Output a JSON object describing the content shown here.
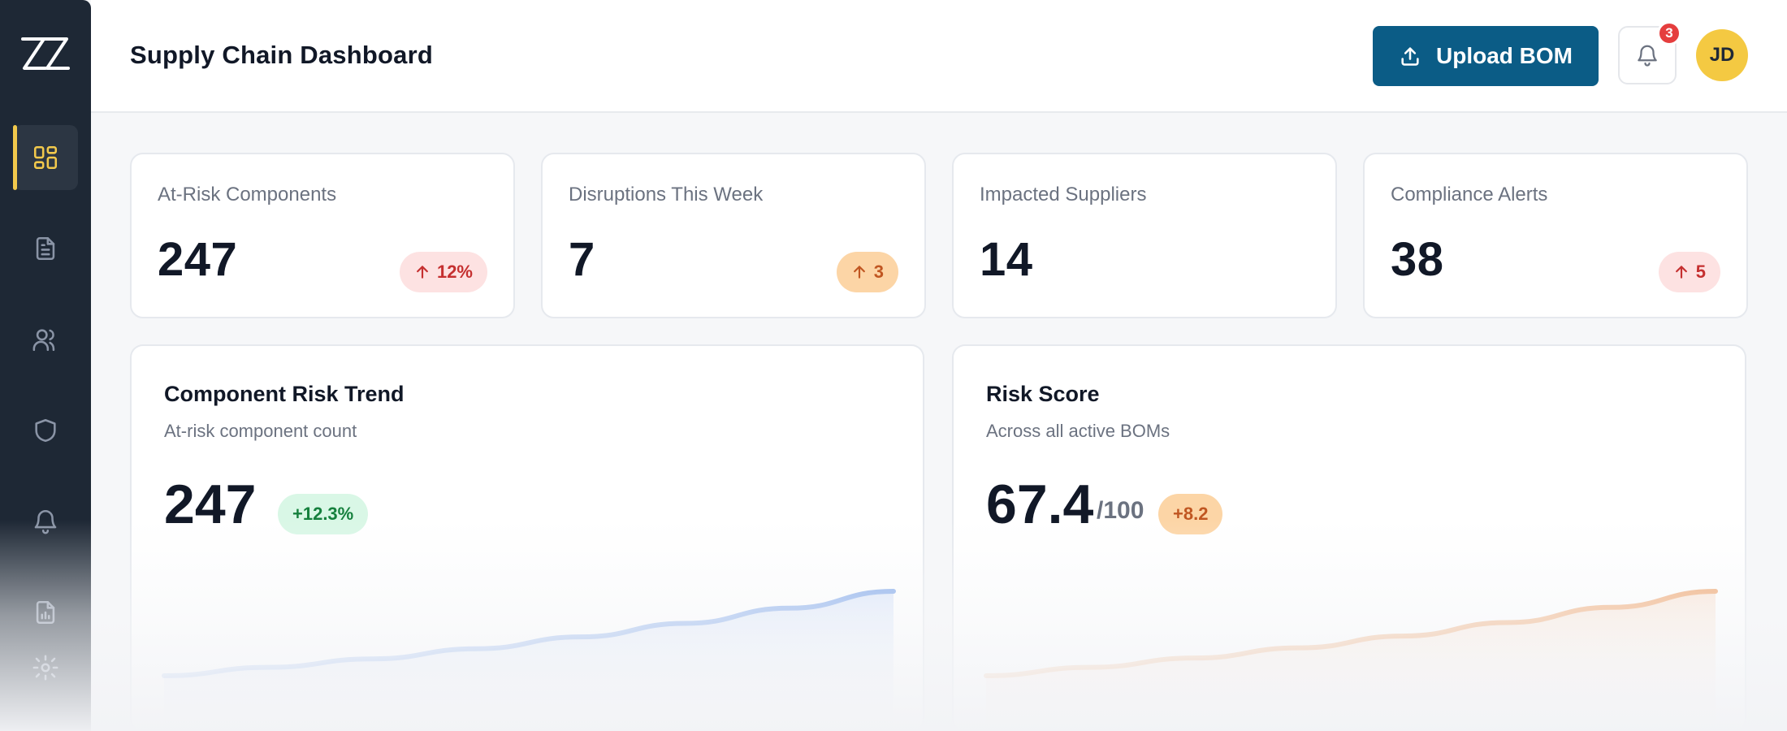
{
  "app": {
    "logo_text": "ZZ",
    "title": "Supply Chain Dashboard"
  },
  "sidebar": {
    "items": [
      {
        "name": "dashboard",
        "icon": "dashboard-grid-icon",
        "active": true
      },
      {
        "name": "documents",
        "icon": "document-icon",
        "active": false
      },
      {
        "name": "suppliers",
        "icon": "users-icon",
        "active": false
      },
      {
        "name": "compliance",
        "icon": "shield-icon",
        "active": false
      },
      {
        "name": "alerts",
        "icon": "bell-icon",
        "active": false
      },
      {
        "name": "reports",
        "icon": "report-chart-icon",
        "active": false
      },
      {
        "name": "settings",
        "icon": "gear-icon",
        "active": false
      }
    ],
    "accent": "#f2c94c"
  },
  "header": {
    "upload_label": "Upload BOM",
    "notification_count": "3",
    "avatar_initials": "JD"
  },
  "kpis": [
    {
      "label": "At-Risk Components",
      "value": "247",
      "delta": "12%",
      "tone": "red"
    },
    {
      "label": "Disruptions This Week",
      "value": "7",
      "delta": "3",
      "tone": "orange"
    },
    {
      "label": "Impacted Suppliers",
      "value": "14"
    },
    {
      "label": "Compliance Alerts",
      "value": "38",
      "delta": "5",
      "tone": "red"
    }
  ],
  "charts": [
    {
      "title": "Component Risk Trend",
      "subtitle": "At-risk component count",
      "value": "247",
      "suffix": "",
      "change": "+12.3%",
      "tone": "green",
      "color": "#7ea6ea"
    },
    {
      "title": "Risk Score",
      "subtitle": "Across all active BOMs",
      "value": "67.4",
      "suffix": "/100",
      "change": "+8.2",
      "tone": "orange",
      "color": "#f0a46b"
    }
  ],
  "chart_data": [
    {
      "type": "area",
      "title": "Component Risk Trend",
      "series": [
        {
          "values": [
            0.0,
            0.1,
            0.2,
            0.32,
            0.46,
            0.62,
            0.8,
            1.0
          ]
        }
      ]
    },
    {
      "type": "area",
      "title": "Risk Score",
      "series": [
        {
          "values": [
            0.0,
            0.1,
            0.21,
            0.33,
            0.47,
            0.63,
            0.81,
            1.0
          ]
        }
      ]
    }
  ]
}
